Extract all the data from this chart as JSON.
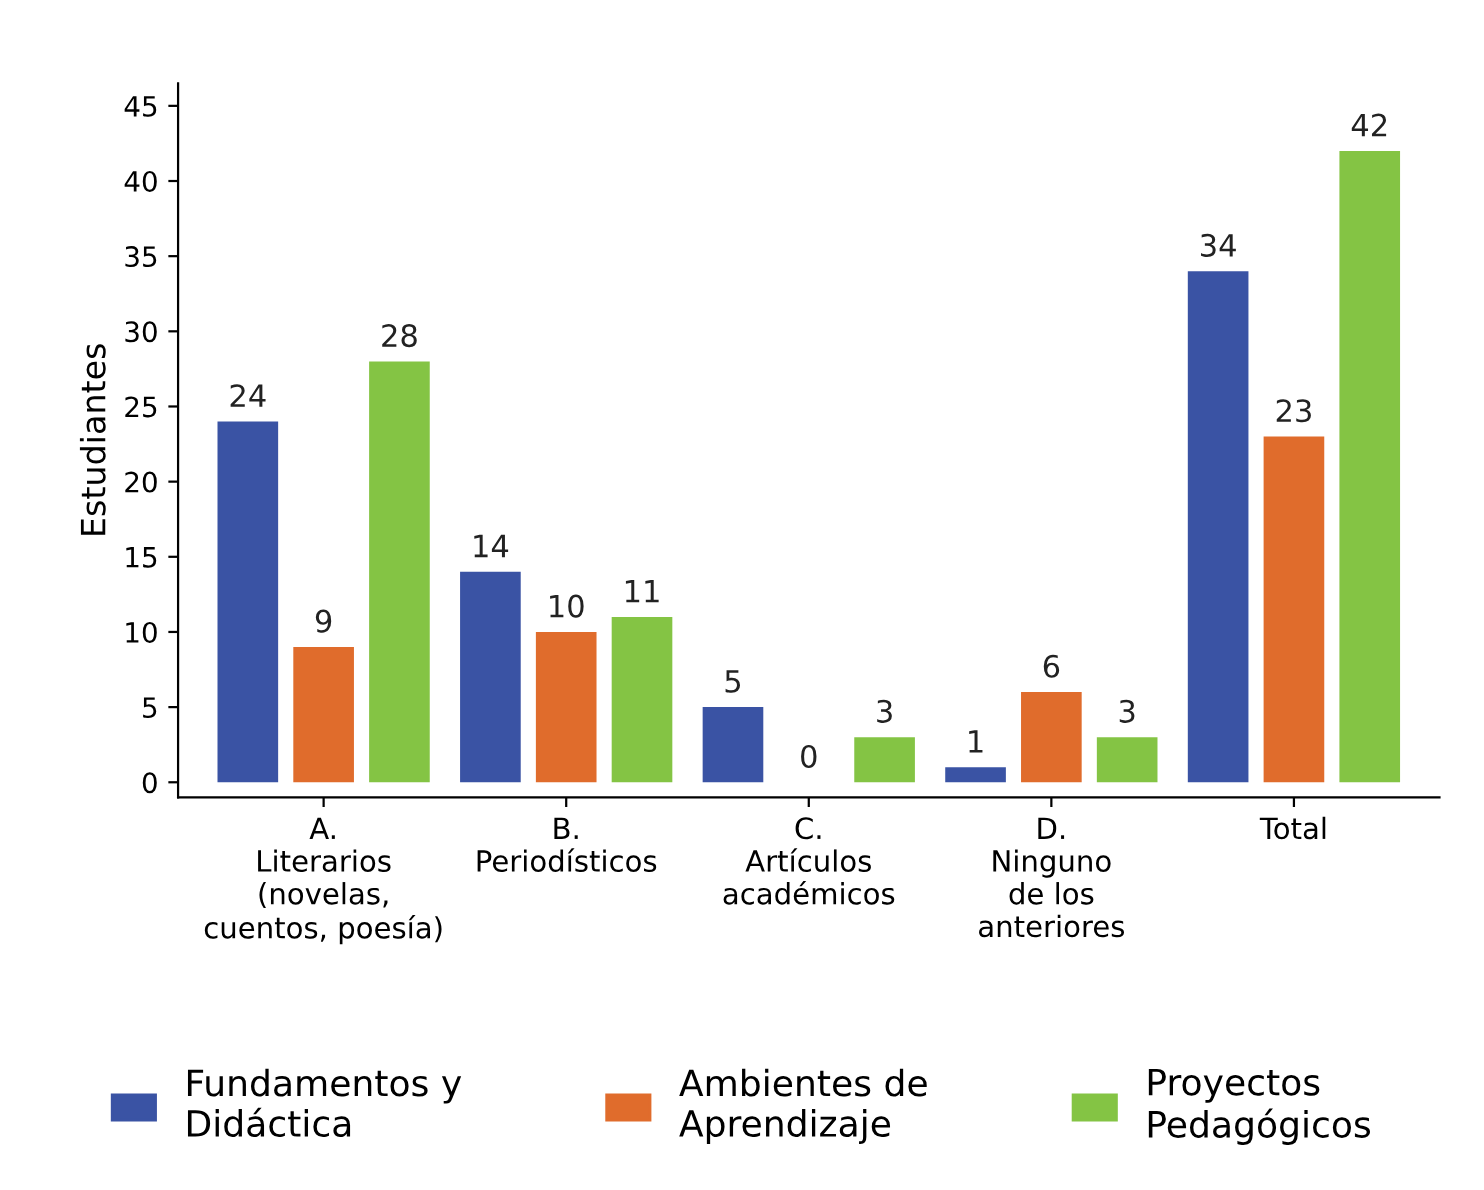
{
  "chart_data": {
    "type": "bar",
    "ylabel": "Estudiantes",
    "categories": [
      "A.\nLiterarios\n(novelas,\ncuentos, poesía)",
      "B.\nPeriodísticos",
      "C.\nArtículos\nacadémicos",
      "D.\nNinguno\nde los\nanteriores",
      "Total"
    ],
    "series": [
      {
        "name": "Fundamentos y\nDidáctica",
        "color": "#3a53a4",
        "values": [
          24,
          14,
          5,
          1,
          34
        ]
      },
      {
        "name": "Ambientes de\nAprendizaje",
        "color": "#e06c2c",
        "values": [
          9,
          10,
          0,
          6,
          23
        ]
      },
      {
        "name": "Proyectos\nPedagógicos",
        "color": "#84c444",
        "values": [
          28,
          11,
          3,
          3,
          42
        ]
      }
    ],
    "ylim": [
      -1,
      46.5
    ],
    "yticks": [
      0,
      5,
      10,
      15,
      20,
      25,
      30,
      35,
      40,
      45
    ],
    "data_labels": true,
    "grid": false,
    "legend": "bottom"
  }
}
